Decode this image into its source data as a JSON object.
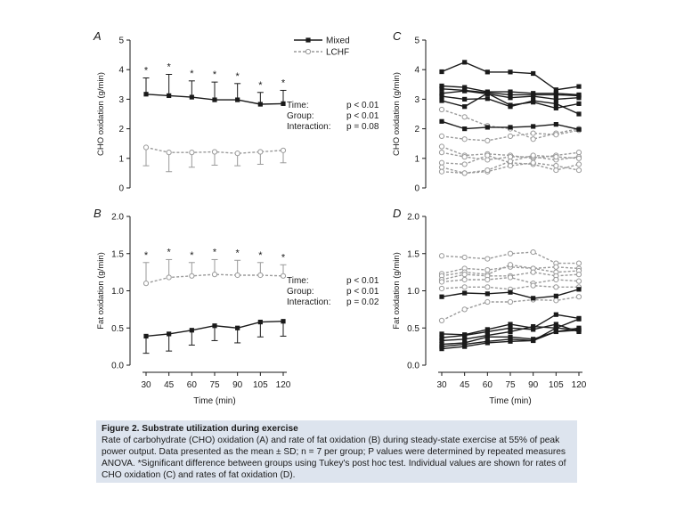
{
  "chart_data": [
    {
      "panel": "A",
      "type": "line",
      "ylabel": "CHO oxidation (g/min)",
      "xlabel": "",
      "x": [
        30,
        45,
        60,
        75,
        90,
        105,
        120
      ],
      "ylim": [
        0,
        5
      ],
      "yticks": [
        "0",
        "1",
        "2",
        "3",
        "4",
        "5"
      ],
      "series": [
        {
          "name": "Mixed",
          "style": "solid",
          "color": "#1a1a1a",
          "marker": "filled-square",
          "values": [
            3.17,
            3.12,
            3.07,
            2.98,
            2.98,
            2.83,
            2.85
          ],
          "sd": [
            0.55,
            0.72,
            0.55,
            0.6,
            0.55,
            0.4,
            0.45
          ],
          "error_dir": "up"
        },
        {
          "name": "LCHF",
          "style": "dashed",
          "color": "#9a9a9a",
          "marker": "open-circle",
          "values": [
            1.37,
            1.2,
            1.2,
            1.22,
            1.17,
            1.22,
            1.27
          ],
          "sd": [
            0.62,
            0.65,
            0.5,
            0.45,
            0.42,
            0.42,
            0.42
          ],
          "error_dir": "down"
        }
      ],
      "significance_marker": "*",
      "stats": [
        {
          "label": "Time:",
          "value": "p < 0.01"
        },
        {
          "label": "Group:",
          "value": "p < 0.01"
        },
        {
          "label": "Interaction:",
          "value": "p = 0.08"
        }
      ],
      "legend_position": "top-right"
    },
    {
      "panel": "B",
      "type": "line",
      "ylabel": "Fat oxidation (g/min)",
      "xlabel": "Time (min)",
      "x": [
        30,
        45,
        60,
        75,
        90,
        105,
        120
      ],
      "ylim": [
        0,
        2
      ],
      "yticks": [
        "0.0",
        "0.5",
        "1.0",
        "1.5",
        "2.0"
      ],
      "series": [
        {
          "name": "Mixed",
          "style": "solid",
          "color": "#1a1a1a",
          "marker": "filled-square",
          "values": [
            0.39,
            0.42,
            0.47,
            0.53,
            0.5,
            0.58,
            0.59
          ],
          "sd": [
            0.23,
            0.23,
            0.2,
            0.2,
            0.2,
            0.2,
            0.2
          ],
          "error_dir": "down"
        },
        {
          "name": "LCHF",
          "style": "dashed",
          "color": "#9a9a9a",
          "marker": "open-circle",
          "values": [
            1.1,
            1.18,
            1.2,
            1.22,
            1.21,
            1.21,
            1.2
          ],
          "sd": [
            0.28,
            0.24,
            0.18,
            0.2,
            0.2,
            0.17,
            0.15
          ],
          "error_dir": "up"
        }
      ],
      "significance_marker": "*",
      "stats": [
        {
          "label": "Time:",
          "value": "p < 0.01"
        },
        {
          "label": "Group:",
          "value": "p < 0.01"
        },
        {
          "label": "Interaction:",
          "value": "p = 0.02"
        }
      ]
    },
    {
      "panel": "C",
      "type": "line",
      "ylabel": "CHO oxidation (g/min)",
      "xlabel": "",
      "x": [
        30,
        45,
        60,
        75,
        90,
        105,
        120
      ],
      "ylim": [
        0,
        5
      ],
      "yticks": [
        "0",
        "1",
        "2",
        "3",
        "4",
        "5"
      ],
      "mixed_individuals": [
        [
          3.93,
          4.25,
          3.92,
          3.92,
          3.87,
          3.32,
          3.43
        ],
        [
          3.45,
          3.4,
          3.25,
          3.25,
          3.2,
          3.2,
          3.15
        ],
        [
          3.35,
          3.3,
          3.22,
          3.15,
          3.15,
          3.15,
          3.12
        ],
        [
          3.2,
          3.28,
          3.18,
          3.05,
          3.1,
          3.0,
          3.05
        ],
        [
          3.1,
          3.0,
          3.02,
          2.75,
          2.95,
          2.85,
          2.5
        ],
        [
          2.95,
          2.75,
          3.2,
          2.8,
          2.9,
          2.7,
          2.85
        ],
        [
          2.25,
          2.0,
          2.05,
          2.05,
          2.08,
          2.15,
          1.98
        ]
      ],
      "lchf_individuals": [
        [
          2.65,
          2.4,
          2.1,
          2.0,
          1.65,
          1.85,
          2.0
        ],
        [
          1.75,
          1.65,
          1.6,
          1.75,
          1.85,
          1.8,
          1.95
        ],
        [
          1.4,
          1.1,
          1.15,
          1.1,
          1.0,
          1.1,
          1.2
        ],
        [
          1.2,
          1.05,
          0.95,
          1.05,
          1.05,
          0.95,
          1.05
        ],
        [
          0.85,
          0.8,
          1.1,
          0.85,
          0.8,
          0.6,
          0.8
        ],
        [
          0.7,
          0.5,
          0.55,
          0.75,
          0.85,
          0.75,
          0.6
        ],
        [
          0.55,
          0.5,
          0.6,
          0.9,
          1.1,
          1.05,
          1.0
        ]
      ]
    },
    {
      "panel": "D",
      "type": "line",
      "ylabel": "Fat oxidation (g/min)",
      "xlabel": "Time (min)",
      "x": [
        30,
        45,
        60,
        75,
        90,
        105,
        120
      ],
      "ylim": [
        0,
        2
      ],
      "yticks": [
        "0.0",
        "0.5",
        "1.0",
        "1.5",
        "2.0"
      ],
      "mixed_individuals": [
        [
          0.92,
          0.97,
          0.96,
          0.98,
          0.9,
          0.93,
          1.02
        ],
        [
          0.42,
          0.41,
          0.48,
          0.55,
          0.5,
          0.68,
          0.63
        ],
        [
          0.37,
          0.4,
          0.45,
          0.5,
          0.48,
          0.55,
          0.45
        ],
        [
          0.33,
          0.35,
          0.4,
          0.45,
          0.52,
          0.5,
          0.62
        ],
        [
          0.28,
          0.3,
          0.38,
          0.38,
          0.35,
          0.45,
          0.5
        ],
        [
          0.25,
          0.28,
          0.32,
          0.35,
          0.33,
          0.5,
          0.48
        ],
        [
          0.22,
          0.25,
          0.3,
          0.32,
          0.33,
          0.45,
          0.47
        ]
      ],
      "lchf_individuals": [
        [
          1.47,
          1.45,
          1.43,
          1.5,
          1.52,
          1.37,
          1.37
        ],
        [
          1.23,
          1.3,
          1.28,
          1.32,
          1.3,
          1.32,
          1.3
        ],
        [
          1.2,
          1.25,
          1.22,
          1.35,
          1.3,
          1.25,
          1.27
        ],
        [
          1.15,
          1.22,
          1.2,
          1.2,
          1.25,
          1.2,
          1.22
        ],
        [
          1.12,
          1.15,
          1.15,
          1.18,
          1.1,
          1.15,
          1.13
        ],
        [
          1.03,
          1.05,
          1.05,
          1.02,
          1.07,
          1.05,
          1.05
        ],
        [
          0.6,
          0.75,
          0.85,
          0.85,
          0.88,
          0.87,
          0.92
        ]
      ]
    }
  ],
  "caption": {
    "title": "Figure 2.  Substrate utilization during exercise",
    "body": "Rate of carbohydrate (CHO) oxidation (A) and rate of fat oxidation (B) during steady-state exercise at 55% of peak power output. Data presented as the mean ± SD; n = 7 per group; P values were determined by repeated measures ANOVA. *Significant difference between groups using Tukey's post hoc test. Individual values are shown for rates of CHO oxidation (C) and rates of fat oxidation (D)."
  }
}
